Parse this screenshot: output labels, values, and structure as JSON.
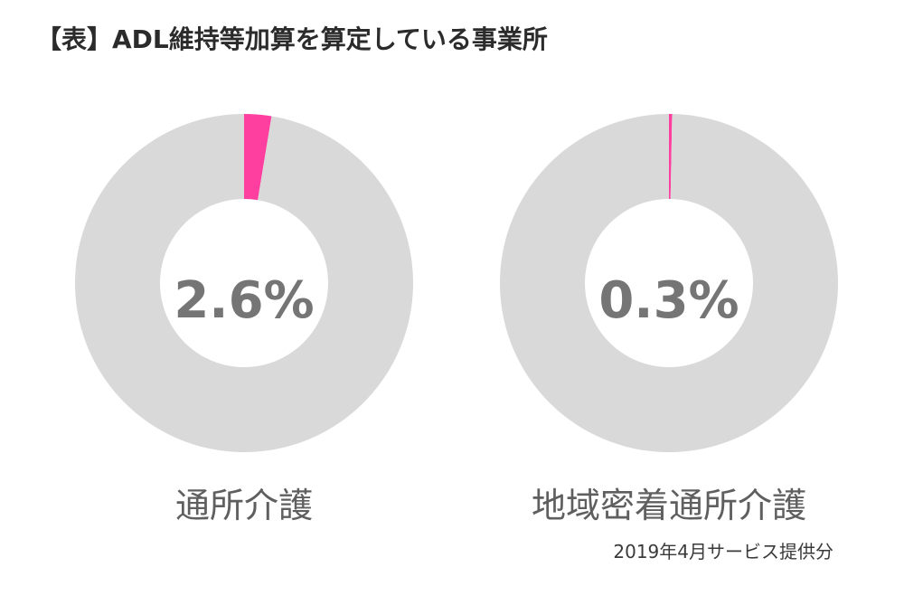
{
  "title": "【表】ADL維持等加算を算定している事業所",
  "note": "2019年4月サービス提供分",
  "colors": {
    "highlight": "#ff3fa0",
    "remainder": "#d9d9d9"
  },
  "chart_data": [
    {
      "type": "pie",
      "variant": "donut",
      "category": "通所介護",
      "center_label": "2.6%",
      "slices": [
        {
          "value": 2.6,
          "color": "#ff3fa0"
        },
        {
          "value": 97.4,
          "color": "#d9d9d9"
        }
      ]
    },
    {
      "type": "pie",
      "variant": "donut",
      "category": "地域密着通所介護",
      "center_label": "0.3%",
      "slices": [
        {
          "value": 0.3,
          "color": "#ff3fa0"
        },
        {
          "value": 99.7,
          "color": "#d9d9d9"
        }
      ]
    }
  ]
}
